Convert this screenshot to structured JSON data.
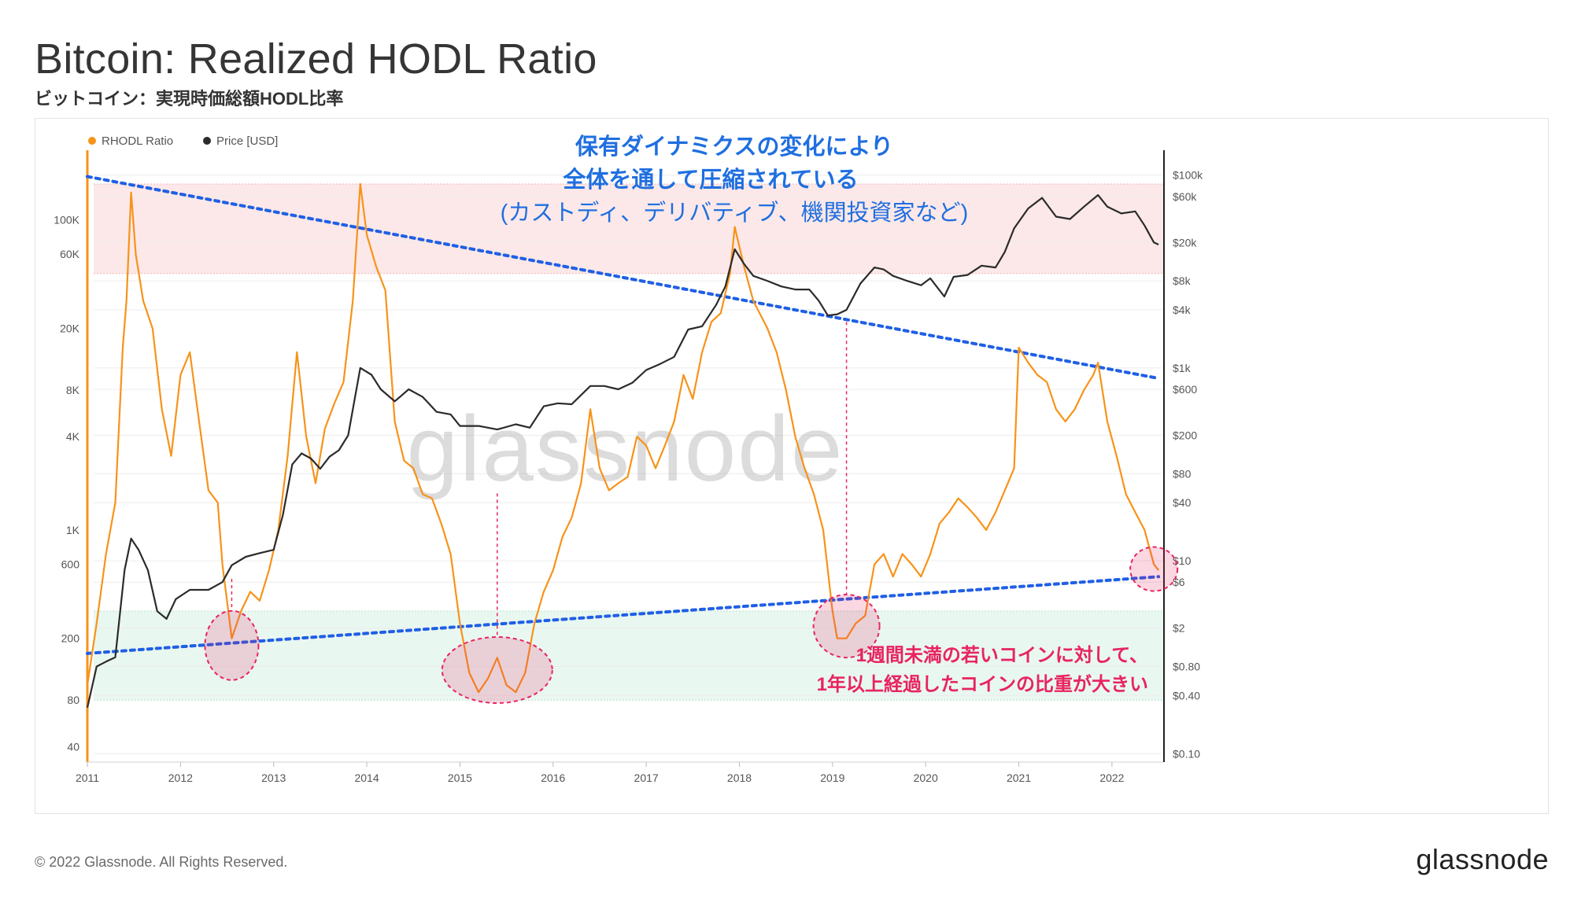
{
  "header": {
    "title": "Bitcoin: Realized HODL Ratio",
    "subtitle": "ビットコイン：実現時価総額HODL比率"
  },
  "legend": [
    {
      "label": "RHODL Ratio",
      "color": "#f7931a"
    },
    {
      "label": "Price [USD]",
      "color": "#2b2b2b"
    }
  ],
  "annotations": {
    "top_line1": "保有ダイナミクスの変化により",
    "top_line2": "全体を通して圧縮されている",
    "top_line3": "(カストディ、デリバティブ、機関投資家など)",
    "bottom_line1": "1週間未満の若いコインに対して、",
    "bottom_line2": "1年以上経過したコインの比重が大きい"
  },
  "watermark": "glassnode",
  "footer": {
    "copyright": "© 2022 Glassnode. All Rights Reserved.",
    "logo": "glassnode"
  },
  "colors": {
    "rhodl": "#f7931a",
    "price": "#2b2b2b",
    "trend": "#1f5fe6",
    "top_band": "#fbe0e0",
    "bottom_band": "#e2f4ec",
    "circle": "#e8245f"
  },
  "chart_data": {
    "type": "line",
    "x_ticks": [
      "2011",
      "2012",
      "2013",
      "2014",
      "2015",
      "2016",
      "2017",
      "2018",
      "2019",
      "2020",
      "2021",
      "2022"
    ],
    "y_left_ticks": [
      "100K",
      "60K",
      "20K",
      "8K",
      "4K",
      "1K",
      "600",
      "200",
      "80",
      "40"
    ],
    "y_left_values": [
      100000,
      60000,
      20000,
      8000,
      4000,
      1000,
      600,
      200,
      80,
      40
    ],
    "y_right_ticks": [
      "$100k",
      "$60k",
      "$20k",
      "$8k",
      "$4k",
      "$1k",
      "$600",
      "$200",
      "$80",
      "$40",
      "$10",
      "$6",
      "$2",
      "$0.80",
      "$0.40",
      "$0.10"
    ],
    "y_right_values": [
      100000,
      60000,
      20000,
      8000,
      4000,
      1000,
      600,
      200,
      80,
      40,
      10,
      6,
      2,
      0.8,
      0.4,
      0.1
    ],
    "y_left_scale": "log",
    "y_right_scale": "log",
    "y_left_range": [
      35,
      250000
    ],
    "y_right_range": [
      0.095,
      150000
    ],
    "bands": [
      {
        "name": "top",
        "y_range": [
          45000,
          170000
        ]
      },
      {
        "name": "bottom",
        "y_range": [
          80,
          300
        ]
      }
    ],
    "series": [
      {
        "name": "RHODL Ratio",
        "axis": "left",
        "points": [
          [
            2011.0,
            100
          ],
          [
            2011.1,
            250
          ],
          [
            2011.2,
            700
          ],
          [
            2011.3,
            1500
          ],
          [
            2011.38,
            15000
          ],
          [
            2011.42,
            30000
          ],
          [
            2011.47,
            150000
          ],
          [
            2011.52,
            60000
          ],
          [
            2011.6,
            30000
          ],
          [
            2011.7,
            20000
          ],
          [
            2011.8,
            6000
          ],
          [
            2011.9,
            3000
          ],
          [
            2012.0,
            10000
          ],
          [
            2012.1,
            14000
          ],
          [
            2012.2,
            5000
          ],
          [
            2012.3,
            1800
          ],
          [
            2012.4,
            1500
          ],
          [
            2012.45,
            600
          ],
          [
            2012.55,
            200
          ],
          [
            2012.65,
            300
          ],
          [
            2012.75,
            400
          ],
          [
            2012.85,
            350
          ],
          [
            2012.95,
            550
          ],
          [
            2013.05,
            1000
          ],
          [
            2013.15,
            3000
          ],
          [
            2013.25,
            14000
          ],
          [
            2013.35,
            4000
          ],
          [
            2013.45,
            2000
          ],
          [
            2013.55,
            4500
          ],
          [
            2013.65,
            6500
          ],
          [
            2013.75,
            9000
          ],
          [
            2013.85,
            30000
          ],
          [
            2013.93,
            170000
          ],
          [
            2014.0,
            80000
          ],
          [
            2014.1,
            50000
          ],
          [
            2014.2,
            35000
          ],
          [
            2014.3,
            5000
          ],
          [
            2014.4,
            2800
          ],
          [
            2014.5,
            2500
          ],
          [
            2014.6,
            1700
          ],
          [
            2014.7,
            1600
          ],
          [
            2014.8,
            1100
          ],
          [
            2014.9,
            700
          ],
          [
            2015.0,
            250
          ],
          [
            2015.1,
            120
          ],
          [
            2015.2,
            90
          ],
          [
            2015.3,
            110
          ],
          [
            2015.4,
            150
          ],
          [
            2015.5,
            100
          ],
          [
            2015.6,
            90
          ],
          [
            2015.7,
            120
          ],
          [
            2015.8,
            250
          ],
          [
            2015.9,
            400
          ],
          [
            2016.0,
            550
          ],
          [
            2016.1,
            900
          ],
          [
            2016.2,
            1200
          ],
          [
            2016.3,
            2000
          ],
          [
            2016.4,
            6000
          ],
          [
            2016.5,
            2500
          ],
          [
            2016.6,
            1800
          ],
          [
            2016.7,
            2000
          ],
          [
            2016.8,
            2200
          ],
          [
            2016.9,
            4000
          ],
          [
            2017.0,
            3500
          ],
          [
            2017.1,
            2500
          ],
          [
            2017.2,
            3500
          ],
          [
            2017.3,
            5000
          ],
          [
            2017.4,
            10000
          ],
          [
            2017.5,
            7000
          ],
          [
            2017.6,
            14000
          ],
          [
            2017.7,
            22000
          ],
          [
            2017.8,
            25000
          ],
          [
            2017.9,
            45000
          ],
          [
            2017.95,
            90000
          ],
          [
            2018.05,
            50000
          ],
          [
            2018.15,
            30000
          ],
          [
            2018.3,
            20000
          ],
          [
            2018.4,
            14000
          ],
          [
            2018.5,
            8000
          ],
          [
            2018.6,
            4000
          ],
          [
            2018.7,
            2500
          ],
          [
            2018.8,
            1700
          ],
          [
            2018.9,
            1000
          ],
          [
            2019.0,
            300
          ],
          [
            2019.05,
            200
          ],
          [
            2019.15,
            200
          ],
          [
            2019.25,
            250
          ],
          [
            2019.35,
            280
          ],
          [
            2019.45,
            600
          ],
          [
            2019.55,
            700
          ],
          [
            2019.65,
            500
          ],
          [
            2019.75,
            700
          ],
          [
            2019.85,
            600
          ],
          [
            2019.95,
            500
          ],
          [
            2020.05,
            700
          ],
          [
            2020.15,
            1100
          ],
          [
            2020.25,
            1300
          ],
          [
            2020.35,
            1600
          ],
          [
            2020.45,
            1400
          ],
          [
            2020.55,
            1200
          ],
          [
            2020.65,
            1000
          ],
          [
            2020.75,
            1300
          ],
          [
            2020.85,
            1800
          ],
          [
            2020.95,
            2500
          ],
          [
            2021.0,
            15000
          ],
          [
            2021.1,
            12000
          ],
          [
            2021.2,
            10000
          ],
          [
            2021.3,
            9000
          ],
          [
            2021.4,
            6000
          ],
          [
            2021.5,
            5000
          ],
          [
            2021.6,
            6000
          ],
          [
            2021.7,
            8000
          ],
          [
            2021.8,
            10000
          ],
          [
            2021.85,
            12000
          ],
          [
            2021.95,
            5000
          ],
          [
            2022.05,
            3000
          ],
          [
            2022.15,
            1700
          ],
          [
            2022.25,
            1300
          ],
          [
            2022.35,
            1000
          ],
          [
            2022.45,
            600
          ],
          [
            2022.5,
            550
          ]
        ]
      },
      {
        "name": "Price [USD]",
        "axis": "right",
        "points": [
          [
            2011.0,
            0.3
          ],
          [
            2011.1,
            0.8
          ],
          [
            2011.2,
            0.9
          ],
          [
            2011.3,
            1.0
          ],
          [
            2011.4,
            8
          ],
          [
            2011.47,
            17
          ],
          [
            2011.55,
            13
          ],
          [
            2011.65,
            8
          ],
          [
            2011.75,
            3
          ],
          [
            2011.85,
            2.5
          ],
          [
            2011.95,
            4
          ],
          [
            2012.1,
            5
          ],
          [
            2012.3,
            5
          ],
          [
            2012.45,
            6
          ],
          [
            2012.55,
            9
          ],
          [
            2012.7,
            11
          ],
          [
            2012.85,
            12
          ],
          [
            2013.0,
            13
          ],
          [
            2013.1,
            30
          ],
          [
            2013.2,
            100
          ],
          [
            2013.3,
            130
          ],
          [
            2013.4,
            115
          ],
          [
            2013.5,
            90
          ],
          [
            2013.6,
            120
          ],
          [
            2013.7,
            140
          ],
          [
            2013.8,
            200
          ],
          [
            2013.93,
            1000
          ],
          [
            2014.05,
            850
          ],
          [
            2014.15,
            600
          ],
          [
            2014.3,
            450
          ],
          [
            2014.45,
            600
          ],
          [
            2014.6,
            500
          ],
          [
            2014.75,
            350
          ],
          [
            2014.9,
            330
          ],
          [
            2015.0,
            250
          ],
          [
            2015.2,
            250
          ],
          [
            2015.4,
            230
          ],
          [
            2015.6,
            260
          ],
          [
            2015.75,
            240
          ],
          [
            2015.9,
            400
          ],
          [
            2016.05,
            430
          ],
          [
            2016.2,
            420
          ],
          [
            2016.4,
            650
          ],
          [
            2016.55,
            650
          ],
          [
            2016.7,
            600
          ],
          [
            2016.85,
            700
          ],
          [
            2017.0,
            950
          ],
          [
            2017.15,
            1100
          ],
          [
            2017.3,
            1300
          ],
          [
            2017.45,
            2500
          ],
          [
            2017.6,
            2700
          ],
          [
            2017.75,
            4500
          ],
          [
            2017.85,
            7000
          ],
          [
            2017.95,
            17000
          ],
          [
            2018.05,
            12000
          ],
          [
            2018.15,
            9000
          ],
          [
            2018.3,
            8000
          ],
          [
            2018.45,
            7000
          ],
          [
            2018.6,
            6500
          ],
          [
            2018.75,
            6500
          ],
          [
            2018.85,
            5000
          ],
          [
            2018.95,
            3500
          ],
          [
            2019.05,
            3600
          ],
          [
            2019.15,
            4000
          ],
          [
            2019.3,
            7500
          ],
          [
            2019.45,
            11000
          ],
          [
            2019.55,
            10500
          ],
          [
            2019.65,
            9000
          ],
          [
            2019.8,
            8000
          ],
          [
            2019.95,
            7200
          ],
          [
            2020.05,
            8500
          ],
          [
            2020.2,
            5500
          ],
          [
            2020.3,
            8800
          ],
          [
            2020.45,
            9200
          ],
          [
            2020.6,
            11500
          ],
          [
            2020.75,
            11000
          ],
          [
            2020.85,
            16000
          ],
          [
            2020.95,
            28000
          ],
          [
            2021.1,
            45000
          ],
          [
            2021.25,
            58000
          ],
          [
            2021.4,
            37000
          ],
          [
            2021.55,
            35000
          ],
          [
            2021.7,
            47000
          ],
          [
            2021.85,
            62000
          ],
          [
            2021.95,
            47000
          ],
          [
            2022.1,
            40000
          ],
          [
            2022.25,
            42000
          ],
          [
            2022.35,
            30000
          ],
          [
            2022.45,
            20000
          ],
          [
            2022.5,
            19000
          ]
        ]
      }
    ],
    "trend_lines": [
      {
        "name": "upper",
        "points": [
          [
            2011.0,
            190000
          ],
          [
            2022.5,
            9500
          ]
        ]
      },
      {
        "name": "lower",
        "points": [
          [
            2011.0,
            160
          ],
          [
            2022.5,
            500
          ]
        ]
      }
    ],
    "highlights": [
      2012.55,
      2015.4,
      2019.15,
      2022.45
    ],
    "grid": true,
    "legend_position": "top-left"
  }
}
